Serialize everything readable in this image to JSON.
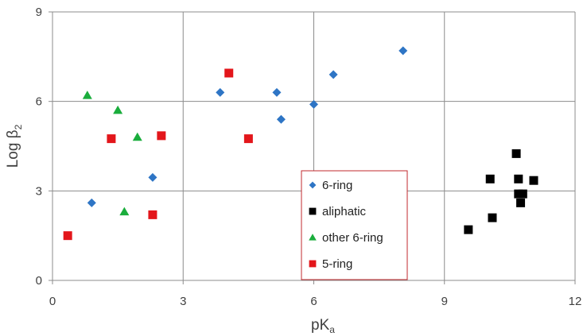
{
  "chart_data": {
    "type": "scatter",
    "xlabel": "pK",
    "xlabel_sub": "a",
    "ylabel": "Log β",
    "ylabel_sub": "2",
    "xlim": [
      0,
      12
    ],
    "ylim": [
      0,
      9
    ],
    "xticks": [
      "0",
      "3",
      "6",
      "9",
      "12"
    ],
    "yticks": [
      "0",
      "3",
      "6",
      "9"
    ],
    "grid": true,
    "legend_position": "bottom-center",
    "series": [
      {
        "name": "6-ring",
        "marker": "diamond",
        "color": "#2e75c5",
        "points": [
          [
            0.9,
            2.6
          ],
          [
            2.3,
            3.45
          ],
          [
            3.85,
            6.3
          ],
          [
            5.15,
            6.3
          ],
          [
            5.25,
            5.4
          ],
          [
            6.0,
            5.9
          ],
          [
            6.45,
            6.9
          ],
          [
            8.05,
            7.7
          ]
        ]
      },
      {
        "name": "aliphatic",
        "marker": "square",
        "color": "#000000",
        "points": [
          [
            9.55,
            1.7
          ],
          [
            10.05,
            3.4
          ],
          [
            10.1,
            2.1
          ],
          [
            10.65,
            4.25
          ],
          [
            10.7,
            3.4
          ],
          [
            10.7,
            2.9
          ],
          [
            10.75,
            2.6
          ],
          [
            10.8,
            2.9
          ],
          [
            11.05,
            3.35
          ]
        ]
      },
      {
        "name": "other 6-ring",
        "marker": "triangle",
        "color": "#1aad3c",
        "points": [
          [
            0.8,
            6.2
          ],
          [
            1.5,
            5.7
          ],
          [
            1.65,
            2.3
          ],
          [
            1.95,
            4.8
          ]
        ]
      },
      {
        "name": "5-ring",
        "marker": "square",
        "color": "#e3161b",
        "points": [
          [
            0.35,
            1.5
          ],
          [
            1.35,
            4.75
          ],
          [
            2.3,
            2.2
          ],
          [
            2.5,
            4.85
          ],
          [
            4.05,
            6.95
          ],
          [
            4.5,
            4.75
          ]
        ]
      }
    ]
  }
}
